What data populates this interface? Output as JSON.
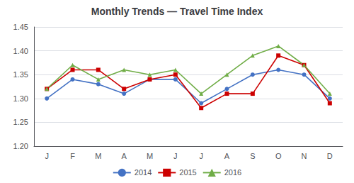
{
  "chart_data": {
    "type": "line",
    "title": "Monthly Trends — Travel Time Index",
    "categories": [
      "J",
      "F",
      "M",
      "A",
      "M",
      "J",
      "J",
      "A",
      "S",
      "O",
      "N",
      "D"
    ],
    "series": [
      {
        "name": "2014",
        "color": "#4472C4",
        "marker": "circle",
        "values": [
          1.3,
          1.34,
          1.33,
          1.31,
          1.34,
          1.34,
          1.29,
          1.32,
          1.35,
          1.36,
          1.35,
          1.3
        ]
      },
      {
        "name": "2015",
        "color": "#CC0000",
        "marker": "square",
        "values": [
          1.32,
          1.36,
          1.36,
          1.32,
          1.34,
          1.35,
          1.28,
          1.31,
          1.31,
          1.39,
          1.37,
          1.29
        ]
      },
      {
        "name": "2016",
        "color": "#70AD47",
        "marker": "triangle",
        "values": [
          1.32,
          1.37,
          1.34,
          1.36,
          1.35,
          1.36,
          1.31,
          1.35,
          1.39,
          1.41,
          1.37,
          1.31
        ]
      }
    ],
    "ylim": [
      1.2,
      1.45
    ],
    "yticks": [
      {
        "value": 1.2,
        "label": "1.20"
      },
      1.25,
      {
        "value": 1.3,
        "label": "1.30"
      },
      1.35,
      {
        "value": 1.4,
        "label": "1.40"
      },
      1.45
    ],
    "grid": true,
    "legend": "bottom"
  }
}
